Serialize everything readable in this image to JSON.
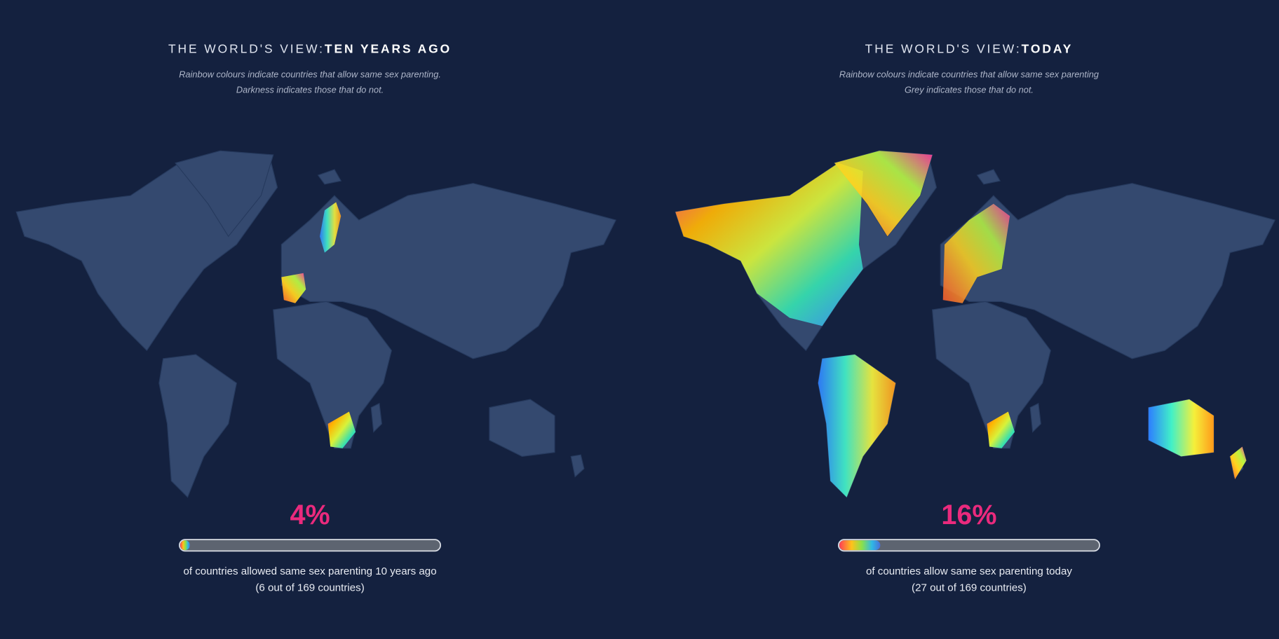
{
  "panels": [
    {
      "title_prefix": "THE WORLD'S VIEW:",
      "title_emphasis": "TEN YEARS AGO",
      "subtitle": [
        "Rainbow colours indicate countries that allow same sex parenting.",
        "Darkness indicates those that do not."
      ],
      "progress": {
        "value": 4,
        "label": "4%",
        "range": [
          0,
          100
        ]
      },
      "caption": [
        "of countries allowed same sex parenting 10 years ago",
        "(6 out of 169 countries)"
      ]
    },
    {
      "title_prefix": "THE WORLD'S VIEW:",
      "title_emphasis": "TODAY",
      "subtitle": [
        "Rainbow colours indicate countries that allow same sex parenting",
        "Grey indicates those that do not."
      ],
      "progress": {
        "value": 16,
        "label": "16%",
        "range": [
          0,
          100
        ]
      },
      "caption": [
        "of countries allow same sex parenting today",
        "(27 out of 169 countries)"
      ]
    }
  ]
}
